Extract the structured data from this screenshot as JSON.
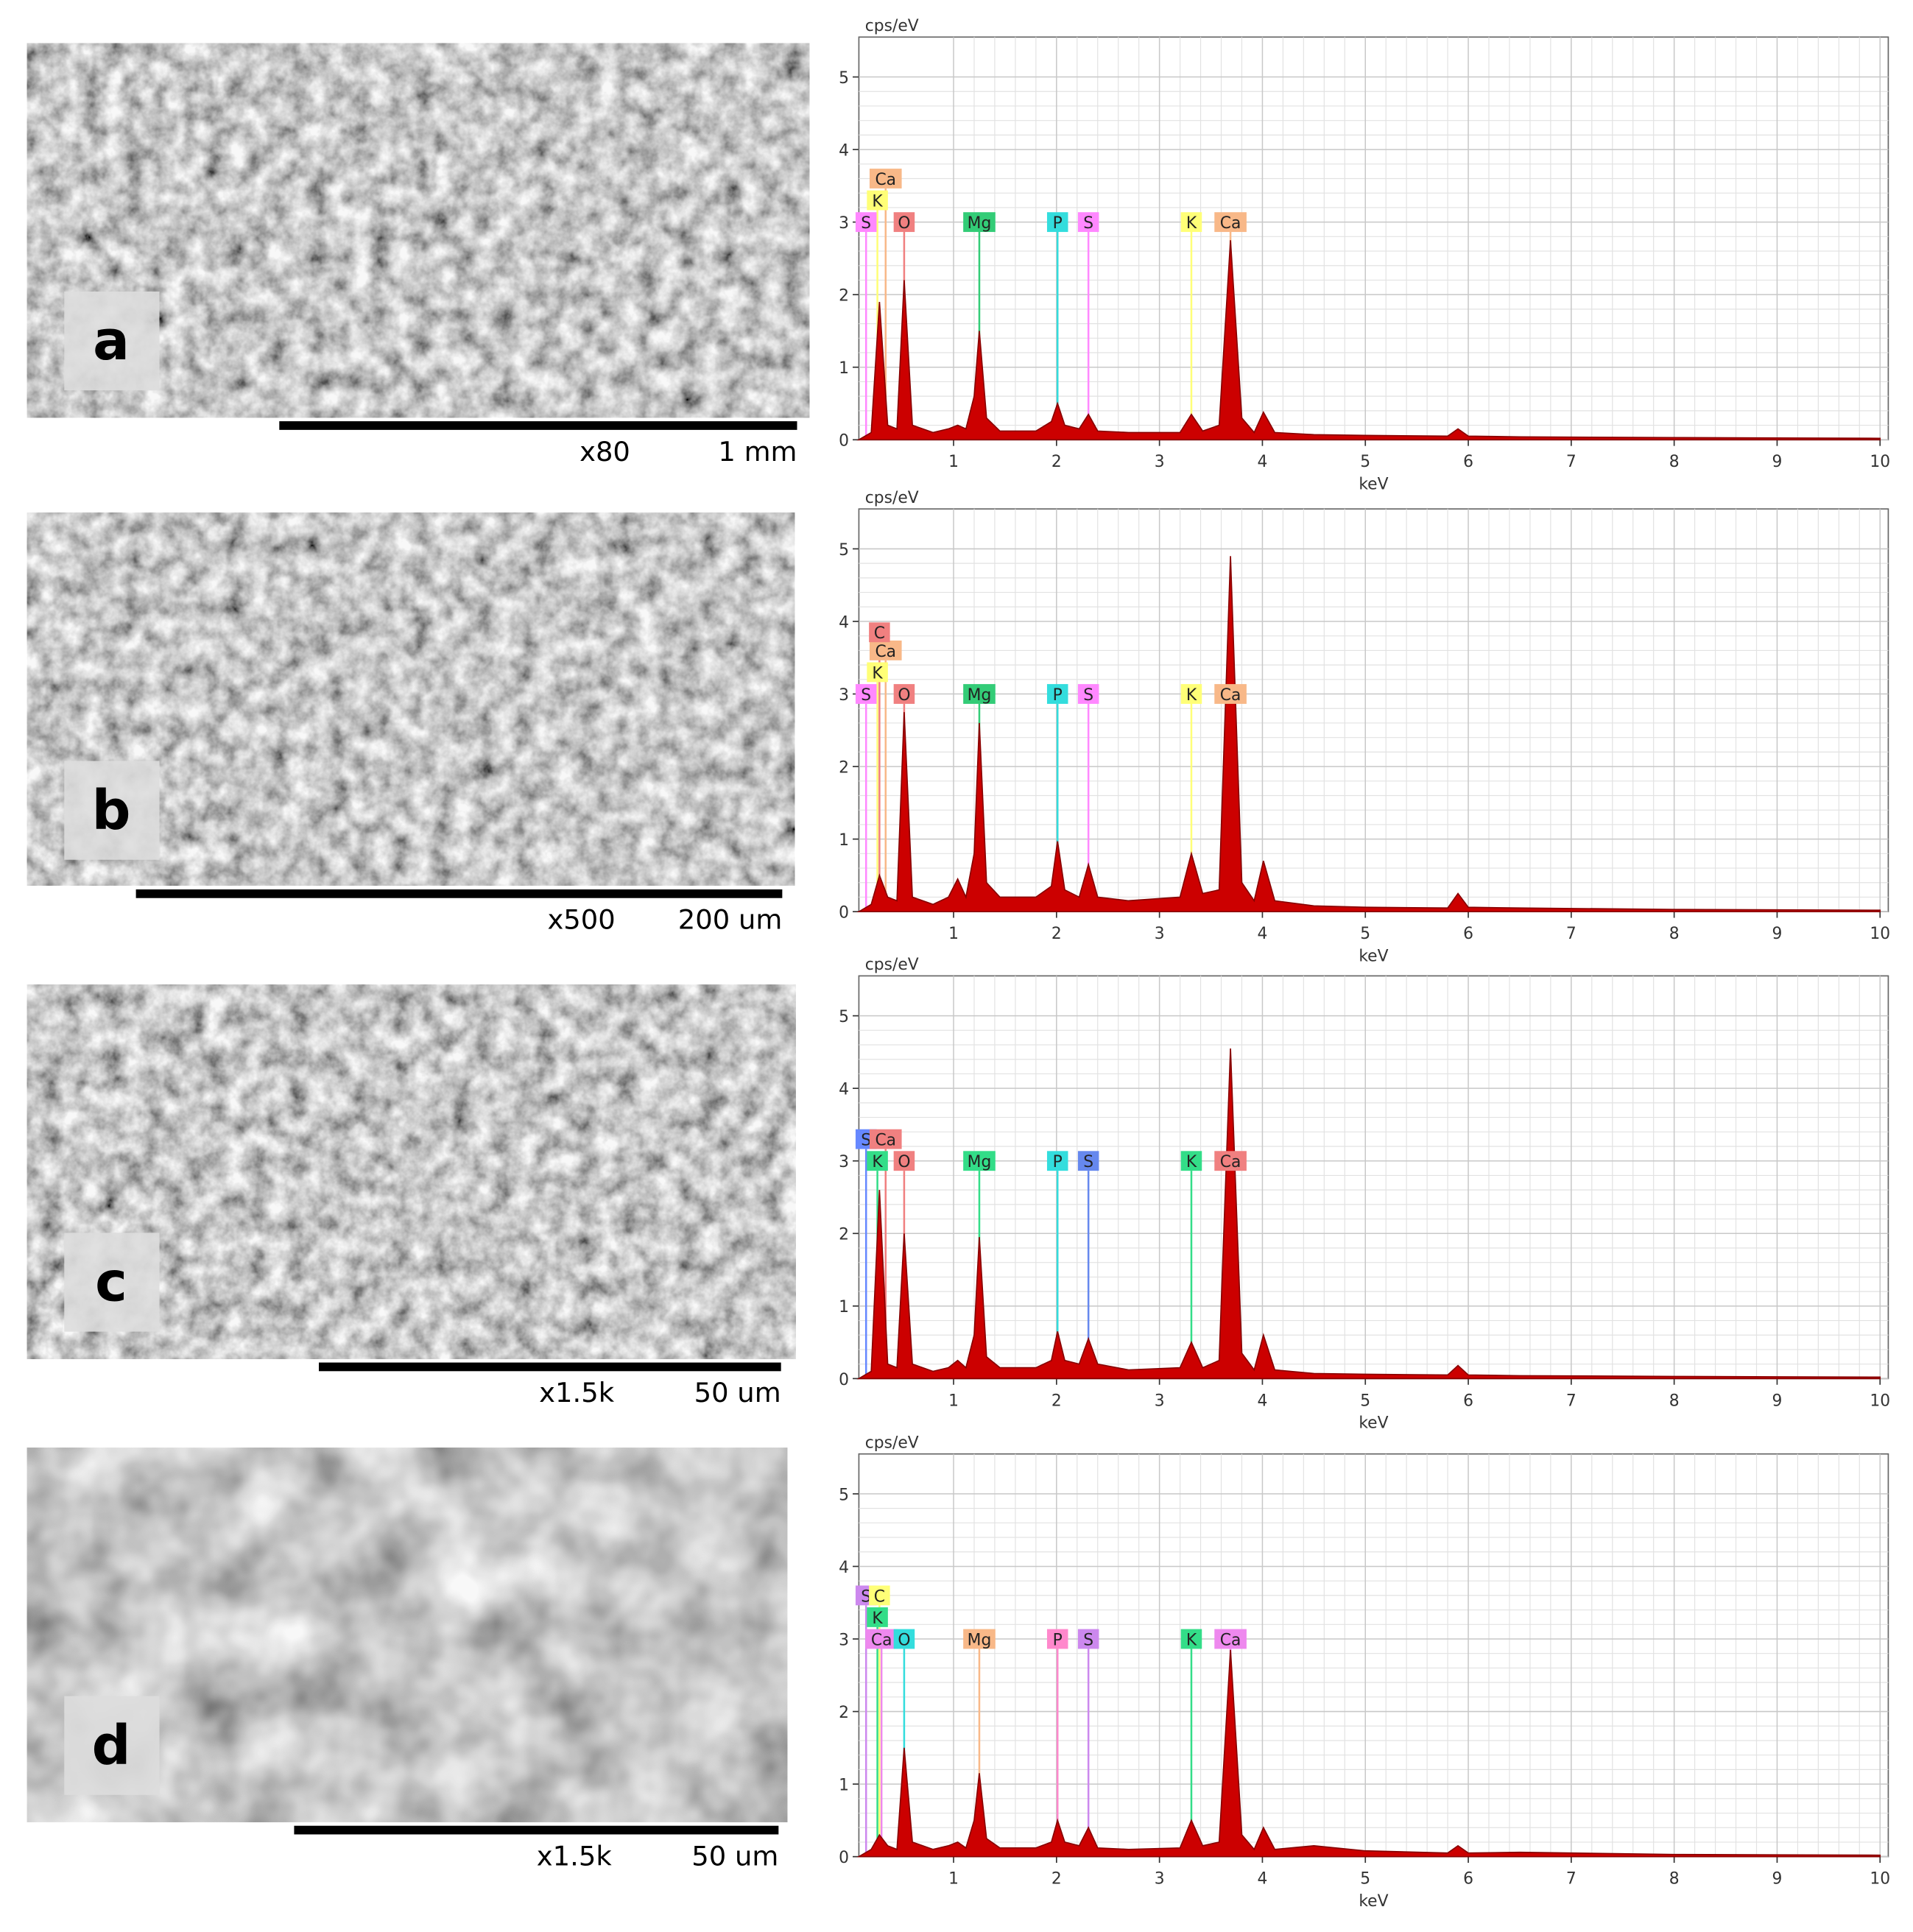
{
  "images": [
    {
      "label": "a",
      "magnification": "x80",
      "scale": "1 mm"
    },
    {
      "label": "b",
      "magnification": "x500",
      "scale": "200 um"
    },
    {
      "label": "c",
      "magnification": "x1.5k",
      "scale": "50 um"
    },
    {
      "label": "d",
      "magnification": "x1.5k",
      "scale": "50 um"
    }
  ],
  "chart_data": [
    {
      "type": "area",
      "y_label": "cps/eV",
      "x_label": "keV",
      "color": "#cc0000",
      "xlim": [
        0.08,
        10.08
      ],
      "ylim": [
        0,
        5.55
      ],
      "xticks": [
        1,
        2,
        3,
        4,
        5,
        6,
        7,
        8,
        9,
        10
      ],
      "yticks": [
        0,
        1,
        2,
        3,
        4,
        5
      ],
      "grid": true,
      "x": [
        0.08,
        0.2,
        0.28,
        0.36,
        0.45,
        0.52,
        0.6,
        0.8,
        0.95,
        1.04,
        1.12,
        1.2,
        1.25,
        1.32,
        1.45,
        1.8,
        1.95,
        2.01,
        2.08,
        2.22,
        2.31,
        2.4,
        2.7,
        3.2,
        3.31,
        3.42,
        3.58,
        3.69,
        3.8,
        3.92,
        4.01,
        4.12,
        4.5,
        5.0,
        5.8,
        5.9,
        6.0,
        6.5,
        8.0,
        10.0
      ],
      "values": [
        0,
        0.1,
        1.9,
        0.2,
        0.15,
        2.2,
        0.2,
        0.1,
        0.15,
        0.2,
        0.15,
        0.6,
        1.5,
        0.3,
        0.12,
        0.12,
        0.25,
        0.5,
        0.2,
        0.15,
        0.35,
        0.12,
        0.1,
        0.1,
        0.35,
        0.12,
        0.2,
        2.75,
        0.3,
        0.1,
        0.38,
        0.1,
        0.07,
        0.06,
        0.05,
        0.15,
        0.05,
        0.04,
        0.03,
        0.02
      ],
      "annotations": [
        {
          "text": "S",
          "x": 0.15,
          "y": 3,
          "color": "#ff88ff"
        },
        {
          "text": "K",
          "x": 0.26,
          "y": 3.3,
          "color": "#ffff77"
        },
        {
          "text": "Ca",
          "x": 0.34,
          "y": 3.6,
          "color": "#f8b888"
        },
        {
          "text": "O",
          "x": 0.52,
          "y": 3,
          "color": "#f08080"
        },
        {
          "text": "Mg",
          "x": 1.25,
          "y": 3,
          "color": "#33cc77"
        },
        {
          "text": "P",
          "x": 2.01,
          "y": 3,
          "color": "#33dddd"
        },
        {
          "text": "S",
          "x": 2.31,
          "y": 3,
          "color": "#ff88ff"
        },
        {
          "text": "K",
          "x": 3.31,
          "y": 3,
          "color": "#ffff77"
        },
        {
          "text": "Ca",
          "x": 3.69,
          "y": 3,
          "color": "#f8b888"
        }
      ]
    },
    {
      "type": "area",
      "y_label": "cps/eV",
      "x_label": "keV",
      "color": "#cc0000",
      "xlim": [
        0.08,
        10.08
      ],
      "ylim": [
        0,
        5.55
      ],
      "xticks": [
        1,
        2,
        3,
        4,
        5,
        6,
        7,
        8,
        9,
        10
      ],
      "yticks": [
        0,
        1,
        2,
        3,
        4,
        5
      ],
      "grid": true,
      "x": [
        0.08,
        0.2,
        0.28,
        0.36,
        0.45,
        0.52,
        0.6,
        0.8,
        0.95,
        1.04,
        1.12,
        1.2,
        1.25,
        1.32,
        1.45,
        1.8,
        1.95,
        2.01,
        2.08,
        2.22,
        2.31,
        2.4,
        2.7,
        3.2,
        3.31,
        3.42,
        3.58,
        3.69,
        3.8,
        3.92,
        4.01,
        4.12,
        4.5,
        5.0,
        5.8,
        5.9,
        6.0,
        6.5,
        8.0,
        10.0
      ],
      "values": [
        0,
        0.1,
        0.5,
        0.2,
        0.15,
        2.75,
        0.2,
        0.1,
        0.2,
        0.45,
        0.2,
        0.8,
        2.6,
        0.4,
        0.2,
        0.2,
        0.35,
        0.97,
        0.3,
        0.2,
        0.65,
        0.2,
        0.15,
        0.2,
        0.8,
        0.25,
        0.3,
        4.9,
        0.4,
        0.15,
        0.7,
        0.15,
        0.08,
        0.06,
        0.05,
        0.25,
        0.06,
        0.05,
        0.03,
        0.02
      ],
      "annotations": [
        {
          "text": "S",
          "x": 0.15,
          "y": 3,
          "color": "#ff88ff"
        },
        {
          "text": "K",
          "x": 0.26,
          "y": 3.3,
          "color": "#ffff77"
        },
        {
          "text": "Ca",
          "x": 0.34,
          "y": 3.6,
          "color": "#f8b888"
        },
        {
          "text": "C",
          "x": 0.28,
          "y": 3.85,
          "color": "#f08080"
        },
        {
          "text": "O",
          "x": 0.52,
          "y": 3,
          "color": "#f08080"
        },
        {
          "text": "Mg",
          "x": 1.25,
          "y": 3,
          "color": "#33cc77"
        },
        {
          "text": "P",
          "x": 2.01,
          "y": 3,
          "color": "#33dddd"
        },
        {
          "text": "S",
          "x": 2.31,
          "y": 3,
          "color": "#ff88ff"
        },
        {
          "text": "K",
          "x": 3.31,
          "y": 3,
          "color": "#ffff77"
        },
        {
          "text": "Ca",
          "x": 3.69,
          "y": 3,
          "color": "#f8b888"
        }
      ]
    },
    {
      "type": "area",
      "y_label": "cps/eV",
      "x_label": "keV",
      "color": "#cc0000",
      "xlim": [
        0.08,
        10.08
      ],
      "ylim": [
        0,
        5.55
      ],
      "xticks": [
        1,
        2,
        3,
        4,
        5,
        6,
        7,
        8,
        9,
        10
      ],
      "yticks": [
        0,
        1,
        2,
        3,
        4,
        5
      ],
      "grid": true,
      "x": [
        0.08,
        0.2,
        0.28,
        0.36,
        0.45,
        0.52,
        0.6,
        0.8,
        0.95,
        1.04,
        1.12,
        1.2,
        1.25,
        1.32,
        1.45,
        1.8,
        1.95,
        2.01,
        2.08,
        2.22,
        2.31,
        2.4,
        2.7,
        3.2,
        3.31,
        3.42,
        3.58,
        3.69,
        3.8,
        3.92,
        4.01,
        4.12,
        4.5,
        5.0,
        5.8,
        5.9,
        6.0,
        6.5,
        8.0,
        10.0
      ],
      "values": [
        0,
        0.1,
        2.6,
        0.2,
        0.15,
        2.0,
        0.2,
        0.1,
        0.15,
        0.25,
        0.15,
        0.6,
        1.95,
        0.3,
        0.15,
        0.15,
        0.25,
        0.65,
        0.25,
        0.2,
        0.55,
        0.2,
        0.12,
        0.15,
        0.5,
        0.15,
        0.25,
        4.55,
        0.35,
        0.12,
        0.6,
        0.12,
        0.07,
        0.06,
        0.05,
        0.18,
        0.05,
        0.04,
        0.03,
        0.02
      ],
      "annotations": [
        {
          "text": "S",
          "x": 0.15,
          "y": 3.3,
          "color": "#6688ff"
        },
        {
          "text": "Ca",
          "x": 0.34,
          "y": 3.3,
          "color": "#f08080"
        },
        {
          "text": "K",
          "x": 0.26,
          "y": 3,
          "color": "#33dd88"
        },
        {
          "text": "O",
          "x": 0.52,
          "y": 3,
          "color": "#f08080"
        },
        {
          "text": "Mg",
          "x": 1.25,
          "y": 3,
          "color": "#33dd88"
        },
        {
          "text": "P",
          "x": 2.01,
          "y": 3,
          "color": "#33dddd"
        },
        {
          "text": "S",
          "x": 2.31,
          "y": 3,
          "color": "#6688ee"
        },
        {
          "text": "K",
          "x": 3.31,
          "y": 3,
          "color": "#33dd88"
        },
        {
          "text": "Ca",
          "x": 3.69,
          "y": 3,
          "color": "#f08080"
        }
      ]
    },
    {
      "type": "area",
      "y_label": "cps/eV",
      "x_label": "keV",
      "color": "#cc0000",
      "xlim": [
        0.08,
        10.08
      ],
      "ylim": [
        0,
        5.55
      ],
      "xticks": [
        1,
        2,
        3,
        4,
        5,
        6,
        7,
        8,
        9,
        10
      ],
      "yticks": [
        0,
        1,
        2,
        3,
        4,
        5
      ],
      "grid": true,
      "x": [
        0.08,
        0.2,
        0.28,
        0.36,
        0.45,
        0.52,
        0.6,
        0.8,
        0.95,
        1.04,
        1.12,
        1.2,
        1.25,
        1.32,
        1.45,
        1.8,
        1.95,
        2.01,
        2.08,
        2.22,
        2.31,
        2.4,
        2.7,
        3.2,
        3.31,
        3.42,
        3.58,
        3.69,
        3.8,
        3.92,
        4.01,
        4.12,
        4.5,
        5.0,
        5.8,
        5.9,
        6.0,
        6.5,
        8.0,
        10.0
      ],
      "values": [
        0,
        0.1,
        0.3,
        0.15,
        0.1,
        1.5,
        0.2,
        0.1,
        0.15,
        0.2,
        0.12,
        0.5,
        1.15,
        0.25,
        0.12,
        0.12,
        0.2,
        0.5,
        0.2,
        0.15,
        0.4,
        0.12,
        0.1,
        0.12,
        0.5,
        0.15,
        0.2,
        2.85,
        0.3,
        0.1,
        0.4,
        0.1,
        0.15,
        0.08,
        0.05,
        0.15,
        0.05,
        0.06,
        0.03,
        0.02
      ],
      "annotations": [
        {
          "text": "S",
          "x": 0.15,
          "y": 3.6,
          "color": "#cc88ee"
        },
        {
          "text": "C",
          "x": 0.28,
          "y": 3.6,
          "color": "#ffff77"
        },
        {
          "text": "K",
          "x": 0.26,
          "y": 3.3,
          "color": "#33dd88"
        },
        {
          "text": "Ca",
          "x": 0.3,
          "y": 3,
          "color": "#ee88ee"
        },
        {
          "text": "O",
          "x": 0.52,
          "y": 3,
          "color": "#33dddd"
        },
        {
          "text": "Mg",
          "x": 1.25,
          "y": 3,
          "color": "#f8b888"
        },
        {
          "text": "P",
          "x": 2.01,
          "y": 3,
          "color": "#ff88cc"
        },
        {
          "text": "S",
          "x": 2.31,
          "y": 3,
          "color": "#cc88ee"
        },
        {
          "text": "K",
          "x": 3.31,
          "y": 3,
          "color": "#33dd88"
        },
        {
          "text": "Ca",
          "x": 3.69,
          "y": 3,
          "color": "#ee88ee"
        }
      ]
    }
  ]
}
